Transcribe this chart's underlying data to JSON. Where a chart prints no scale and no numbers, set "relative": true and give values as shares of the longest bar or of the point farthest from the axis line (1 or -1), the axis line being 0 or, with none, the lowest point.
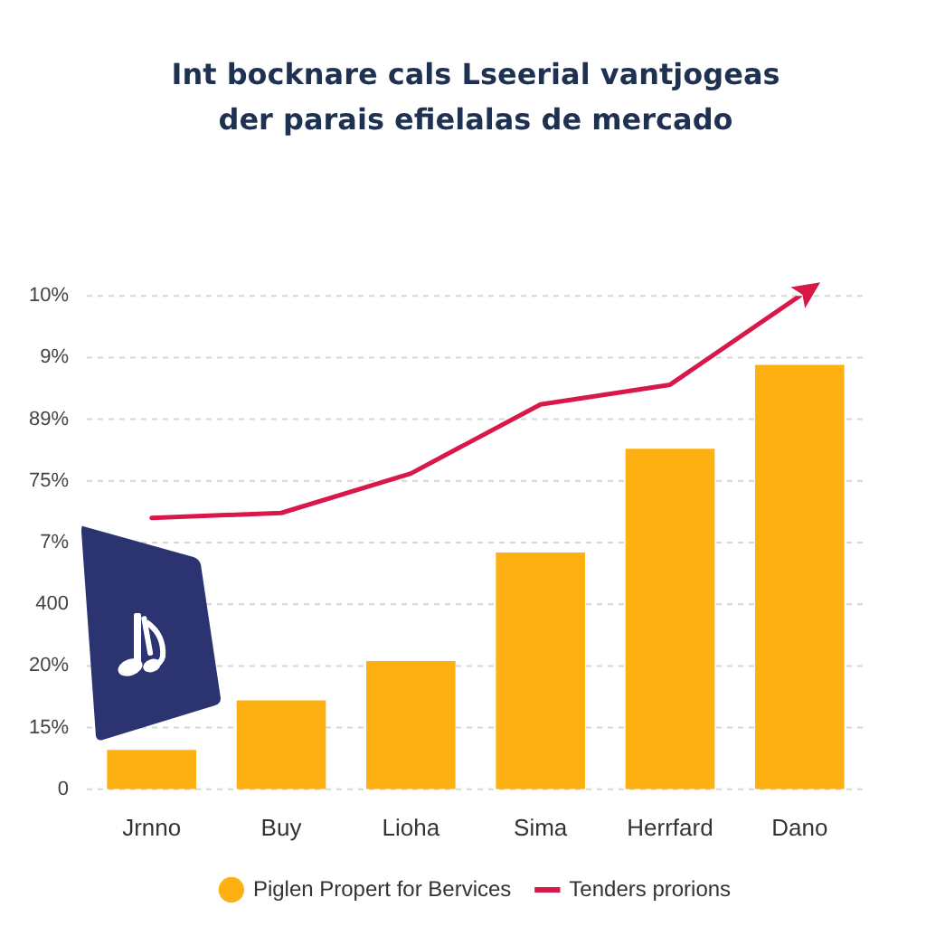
{
  "chart_data": {
    "type": "bar",
    "title": "Int bocknare cals Lseerial vantjogeas der parais efielalas de mercado",
    "categories": [
      "Jrnno",
      "Buy",
      "Lioha",
      "Sima",
      "Herrfard",
      "Dano"
    ],
    "series": [
      {
        "name": "Piglen Propert for Bervices",
        "color": "#fcb012",
        "values": [
          0.08,
          0.18,
          0.26,
          0.48,
          0.69,
          0.86
        ]
      },
      {
        "name": "Tenders prorions",
        "type": "line",
        "color": "#d9184a",
        "values": [
          0.55,
          0.56,
          0.64,
          0.78,
          0.82,
          1
        ]
      }
    ],
    "relative": true,
    "annotations": [
      "10%",
      "9%",
      "89%",
      "75%",
      "7%",
      "400",
      "20%",
      "15%",
      "0"
    ],
    "grid": "y",
    "legend": "bottom",
    "marker": "none",
    "line_style": "solid"
  }
}
